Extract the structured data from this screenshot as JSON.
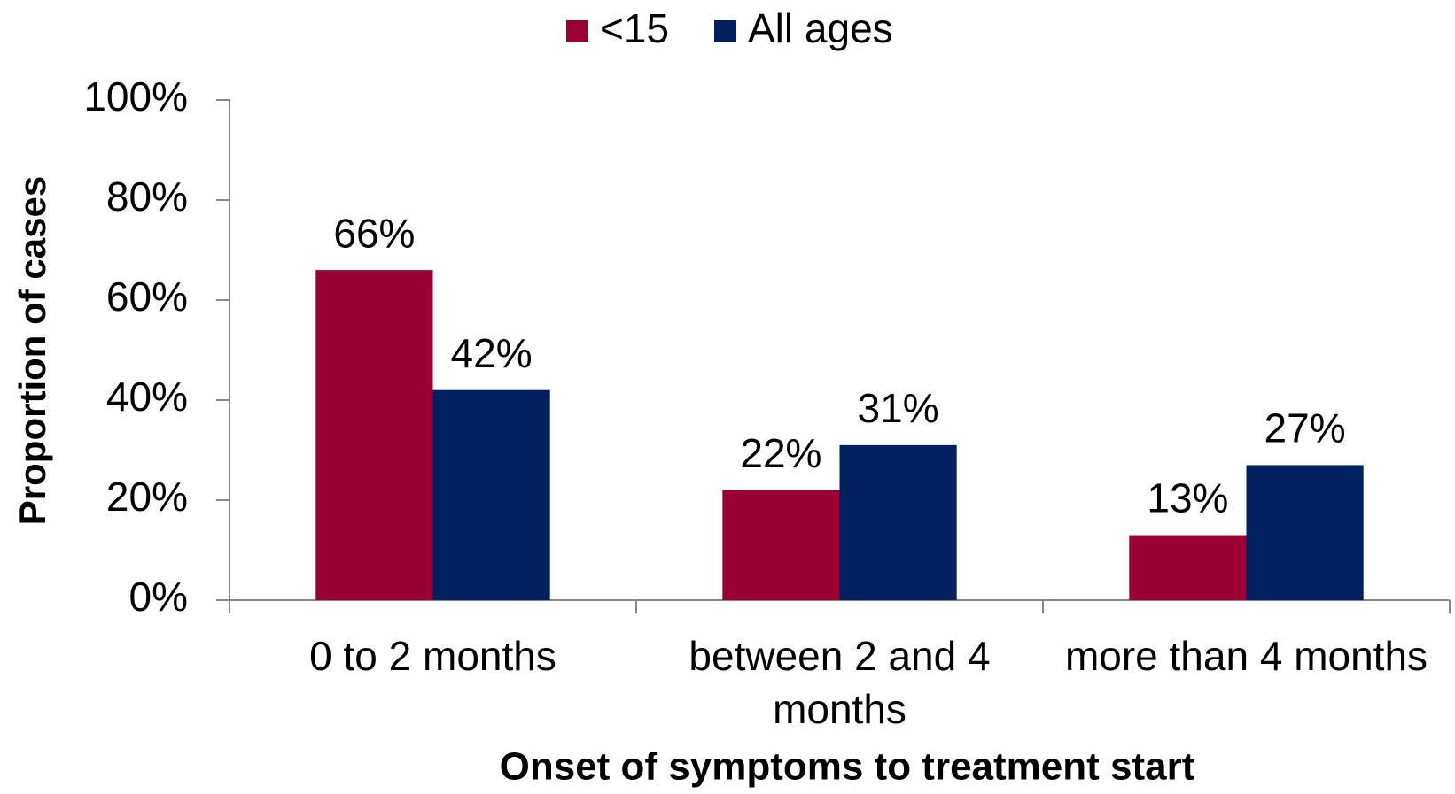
{
  "chart_data": {
    "type": "bar",
    "xlabel": "Onset of symptoms to treatment start",
    "ylabel": "Proportion of cases",
    "categories": [
      "0 to 2 months",
      "between 2 and 4 months",
      "more than 4 months"
    ],
    "series": [
      {
        "name": "<15",
        "color": "#990033",
        "values": [
          66,
          22,
          13
        ],
        "value_labels": [
          "66%",
          "22%",
          "13%"
        ]
      },
      {
        "name": "All ages",
        "color": "#002060",
        "values": [
          42,
          31,
          27
        ],
        "value_labels": [
          "42%",
          "31%",
          "27%"
        ]
      }
    ],
    "ylim": [
      0,
      100
    ],
    "yticks": [
      {
        "value": 0,
        "label": "0%"
      },
      {
        "value": 20,
        "label": "20%"
      },
      {
        "value": 40,
        "label": "40%"
      },
      {
        "value": 60,
        "label": "60%"
      },
      {
        "value": 80,
        "label": "80%"
      },
      {
        "value": 100,
        "label": "100%"
      }
    ],
    "grid": false,
    "legend": "top"
  }
}
